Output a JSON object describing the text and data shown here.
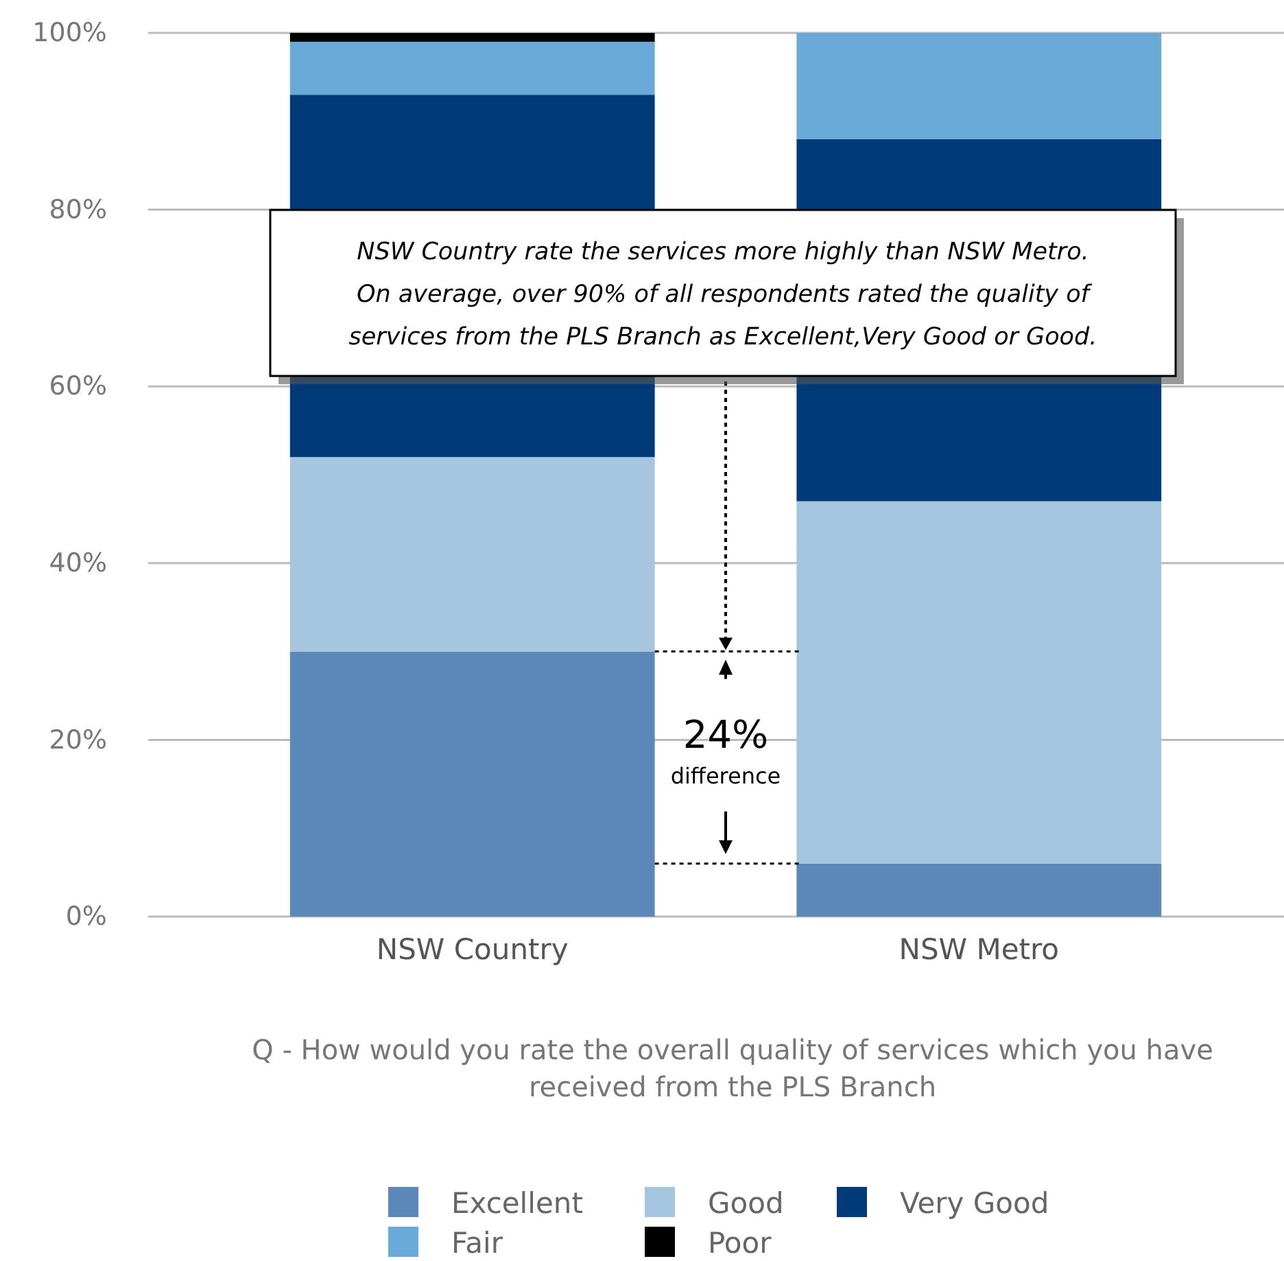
{
  "chart_data": {
    "type": "bar",
    "stacked": true,
    "categories": [
      "NSW Country",
      "NSW Metro"
    ],
    "series": [
      {
        "name": "Excellent",
        "color": "#5b87b9",
        "values": [
          30,
          6
        ]
      },
      {
        "name": "Good",
        "color": "#a6c6e0",
        "values": [
          22,
          41
        ]
      },
      {
        "name": "Very Good",
        "color": "#003a78",
        "values": [
          41,
          41
        ]
      },
      {
        "name": "Fair",
        "color": "#6aaad8",
        "values": [
          6,
          12
        ]
      },
      {
        "name": "Poor",
        "color": "#000000",
        "values": [
          1,
          0
        ]
      }
    ],
    "ylim": [
      0,
      100
    ],
    "yticks": [
      {
        "value": 0,
        "label": "0%"
      },
      {
        "value": 20,
        "label": "20%"
      },
      {
        "value": 40,
        "label": "40%"
      },
      {
        "value": 60,
        "label": "60%"
      },
      {
        "value": 80,
        "label": "80%"
      },
      {
        "value": 100,
        "label": "100%"
      }
    ],
    "grid": "y",
    "legend": "bottom",
    "xlabel": "Q - How would you rate the overall quality of services which you have\nreceived from the PLS Branch",
    "annotations": [
      "NSW Country rate the services more highly than NSW Metro.\nOn average, over 90% of all respondents rated the quality of\nservices from the PLS Branch as Excellent,Very Good or Good.",
      "24%",
      "difference"
    ]
  }
}
